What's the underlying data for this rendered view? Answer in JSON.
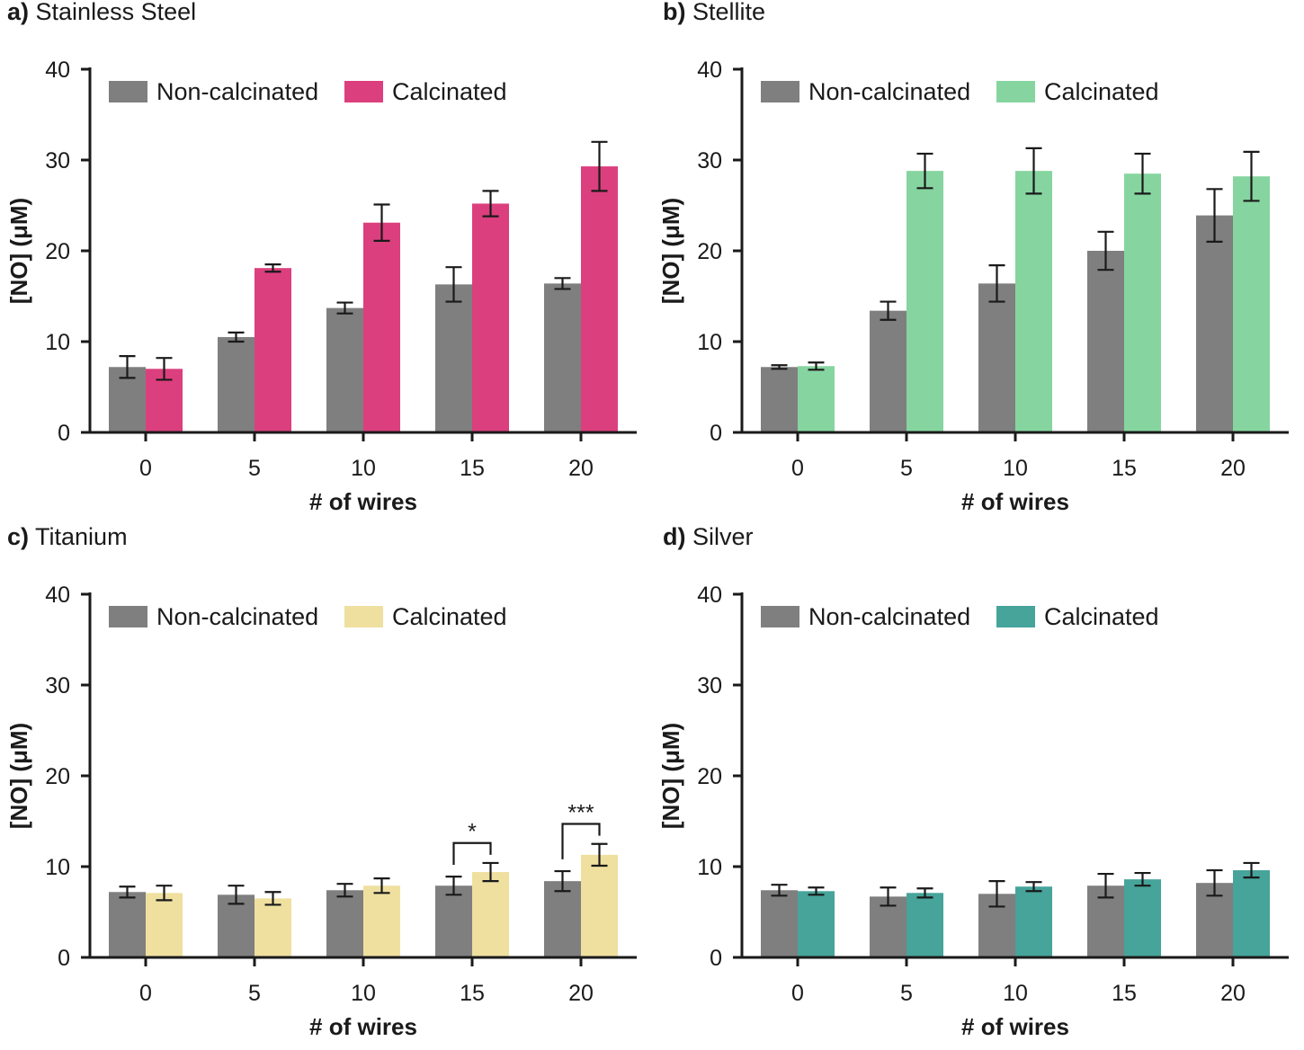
{
  "colors": {
    "non_calcinated": "#7f7f7f",
    "stainless_steel": "#dc3f7e",
    "stellite": "#86d5a0",
    "titanium": "#efe0a0",
    "silver": "#46a49a",
    "axis": "#1a1a1a"
  },
  "chart_data": [
    {
      "type": "bar",
      "panel_letter": "a)",
      "title": "Stainless Steel",
      "xlabel": "# of wires",
      "ylabel": "[NO] (μM)",
      "ylim": [
        0,
        40
      ],
      "yticks": [
        "0",
        "10",
        "20",
        "30",
        "40"
      ],
      "categories": [
        "0",
        "5",
        "10",
        "15",
        "20"
      ],
      "legend_position": "top-left",
      "series": [
        {
          "name": "Non-calcinated",
          "color_key": "non_calcinated",
          "values": [
            7.2,
            10.5,
            13.7,
            16.3,
            16.4
          ],
          "errors": [
            1.2,
            0.5,
            0.6,
            1.9,
            0.6
          ]
        },
        {
          "name": "Calcinated",
          "color_key": "stainless_steel",
          "values": [
            7.0,
            18.1,
            23.1,
            25.2,
            29.3
          ],
          "errors": [
            1.2,
            0.4,
            2.0,
            1.4,
            2.7
          ]
        }
      ],
      "annotations": []
    },
    {
      "type": "bar",
      "panel_letter": "b)",
      "title": "Stellite",
      "xlabel": "# of wires",
      "ylabel": "[NO] (μM)",
      "ylim": [
        0,
        40
      ],
      "yticks": [
        "0",
        "10",
        "20",
        "30",
        "40"
      ],
      "categories": [
        "0",
        "5",
        "10",
        "15",
        "20"
      ],
      "legend_position": "top-left",
      "series": [
        {
          "name": "Non-calcinated",
          "color_key": "non_calcinated",
          "values": [
            7.2,
            13.4,
            16.4,
            20.0,
            23.9
          ],
          "errors": [
            0.2,
            1.0,
            2.0,
            2.1,
            2.9
          ]
        },
        {
          "name": "Calcinated",
          "color_key": "stellite",
          "values": [
            7.3,
            28.8,
            28.8,
            28.5,
            28.2
          ],
          "errors": [
            0.4,
            1.9,
            2.5,
            2.2,
            2.7
          ]
        }
      ],
      "annotations": []
    },
    {
      "type": "bar",
      "panel_letter": "c)",
      "title": "Titanium",
      "xlabel": "# of wires",
      "ylabel": "[NO] (μM)",
      "ylim": [
        0,
        40
      ],
      "yticks": [
        "0",
        "10",
        "20",
        "30",
        "40"
      ],
      "categories": [
        "0",
        "5",
        "10",
        "15",
        "20"
      ],
      "legend_position": "top-left",
      "series": [
        {
          "name": "Non-calcinated",
          "color_key": "non_calcinated",
          "values": [
            7.2,
            6.9,
            7.4,
            7.9,
            8.4
          ],
          "errors": [
            0.6,
            1.0,
            0.7,
            1.0,
            1.1
          ]
        },
        {
          "name": "Calcinated",
          "color_key": "titanium",
          "values": [
            7.1,
            6.5,
            7.9,
            9.4,
            11.3
          ],
          "errors": [
            0.8,
            0.7,
            0.8,
            1.0,
            1.2
          ]
        }
      ],
      "annotations": [
        {
          "category_index": 3,
          "label": "*",
          "bracket_top": 12.6
        },
        {
          "category_index": 4,
          "label": "***",
          "bracket_top": 14.7
        }
      ]
    },
    {
      "type": "bar",
      "panel_letter": "d)",
      "title": "Silver",
      "xlabel": "# of wires",
      "ylabel": "[NO] (μM)",
      "ylim": [
        0,
        40
      ],
      "yticks": [
        "0",
        "10",
        "20",
        "30",
        "40"
      ],
      "categories": [
        "0",
        "5",
        "10",
        "15",
        "20"
      ],
      "legend_position": "top-left",
      "series": [
        {
          "name": "Non-calcinated",
          "color_key": "non_calcinated",
          "values": [
            7.4,
            6.7,
            7.0,
            7.9,
            8.2
          ],
          "errors": [
            0.6,
            1.0,
            1.4,
            1.3,
            1.4
          ]
        },
        {
          "name": "Calcinated",
          "color_key": "silver",
          "values": [
            7.3,
            7.1,
            7.8,
            8.6,
            9.6
          ],
          "errors": [
            0.4,
            0.5,
            0.5,
            0.7,
            0.8
          ]
        }
      ],
      "annotations": []
    }
  ]
}
